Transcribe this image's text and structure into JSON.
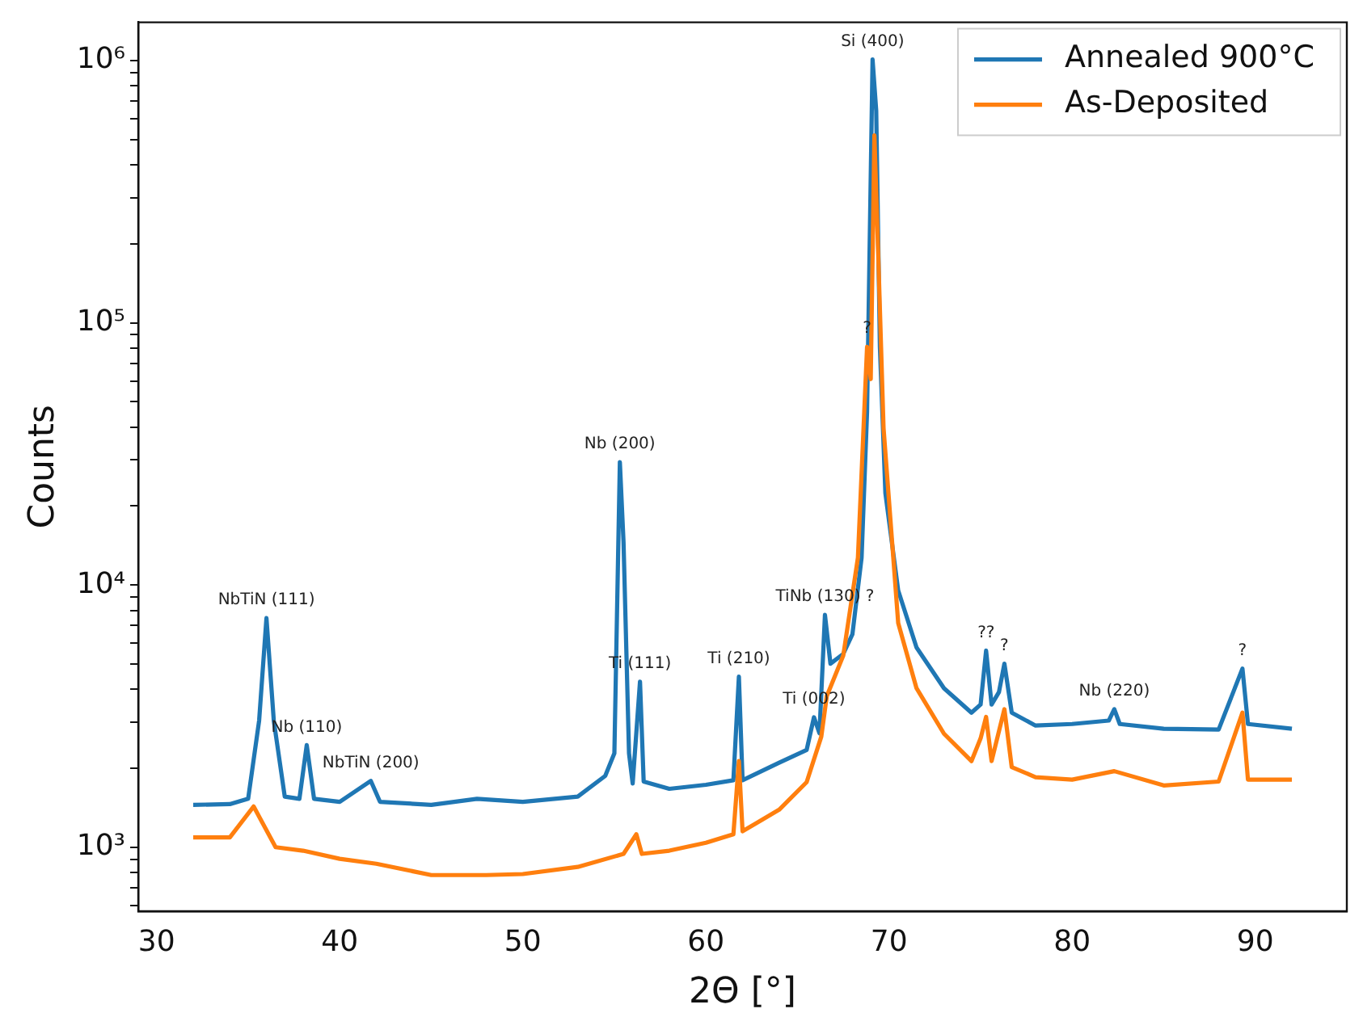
{
  "chart_data": {
    "type": "line",
    "xlabel": "2Θ [°]",
    "ylabel": "Counts",
    "log": "y",
    "legend": "top right",
    "marker": "none",
    "line_style": "solid",
    "grid": false,
    "xlim": [
      29,
      95
    ],
    "xticks": [
      30,
      40,
      50,
      60,
      70,
      80,
      90
    ],
    "ylim": [
      570,
      1400000
    ],
    "yticks": [
      {
        "value": 600,
        "label": null
      },
      {
        "value": 700,
        "label": null
      },
      {
        "value": 800,
        "label": null
      },
      {
        "value": 900,
        "label": null
      },
      {
        "value": 1000,
        "label": "10³"
      },
      {
        "value": 2000,
        "label": null
      },
      {
        "value": 3000,
        "label": null
      },
      {
        "value": 4000,
        "label": null
      },
      {
        "value": 5000,
        "label": null
      },
      {
        "value": 6000,
        "label": null
      },
      {
        "value": 7000,
        "label": null
      },
      {
        "value": 8000,
        "label": null
      },
      {
        "value": 9000,
        "label": null
      },
      {
        "value": 10000,
        "label": "10⁴"
      },
      {
        "value": 20000,
        "label": null
      },
      {
        "value": 30000,
        "label": null
      },
      {
        "value": 40000,
        "label": null
      },
      {
        "value": 50000,
        "label": null
      },
      {
        "value": 60000,
        "label": null
      },
      {
        "value": 70000,
        "label": null
      },
      {
        "value": 80000,
        "label": null
      },
      {
        "value": 90000,
        "label": null
      },
      {
        "value": 100000,
        "label": "10⁵"
      },
      {
        "value": 200000,
        "label": null
      },
      {
        "value": 300000,
        "label": null
      },
      {
        "value": 400000,
        "label": null
      },
      {
        "value": 500000,
        "label": null
      },
      {
        "value": 600000,
        "label": null
      },
      {
        "value": 700000,
        "label": null
      },
      {
        "value": 800000,
        "label": null
      },
      {
        "value": 900000,
        "label": null
      },
      {
        "value": 1000000,
        "label": "10⁶"
      }
    ],
    "series": [
      {
        "name": "Annealed 900°C",
        "color": "#1f77b4",
        "x": [
          32,
          34,
          35,
          35.6,
          36,
          36.4,
          37,
          37.8,
          38.2,
          38.6,
          40,
          41.7,
          42.2,
          45,
          47.5,
          50,
          53,
          54.5,
          55,
          55.3,
          55.5,
          55.8,
          56,
          56.4,
          56.6,
          58,
          60,
          61.5,
          61.8,
          62,
          64,
          65.5,
          65.9,
          66.2,
          66.5,
          66.8,
          67.5,
          68,
          68.5,
          68.8,
          69.1,
          69.3,
          69.5,
          69.8,
          70.5,
          71.5,
          73,
          74.5,
          75,
          75.3,
          75.6,
          76,
          76.3,
          76.7,
          78,
          80,
          82,
          82.3,
          82.6,
          85,
          88,
          89.3,
          89.6,
          92
        ],
        "values": [
          1450,
          1460,
          1530,
          3040,
          7480,
          3040,
          1560,
          1530,
          2450,
          1530,
          1490,
          1790,
          1490,
          1450,
          1530,
          1490,
          1560,
          1870,
          2280,
          29400,
          14600,
          2280,
          1750,
          4280,
          1780,
          1670,
          1730,
          1800,
          4470,
          1800,
          2100,
          2350,
          3130,
          2720,
          7690,
          5010,
          5460,
          6490,
          12700,
          45800,
          1010000,
          643000,
          81000,
          22400,
          9530,
          5780,
          4040,
          3260,
          3500,
          5620,
          3500,
          3900,
          5010,
          3260,
          2910,
          2950,
          3040,
          3360,
          2950,
          2830,
          2810,
          4800,
          2950,
          2830
        ]
      },
      {
        "name": "As-Deposited",
        "color": "#ff7f0e",
        "x": [
          32,
          34,
          35.3,
          36.5,
          38,
          40,
          42,
          45,
          48,
          50,
          53,
          55.5,
          56.2,
          56.5,
          58,
          60,
          61.5,
          61.8,
          62,
          64,
          65.5,
          66.3,
          66.6,
          67.5,
          68.3,
          68.8,
          69,
          69.2,
          69.4,
          69.7,
          70.5,
          71.5,
          73,
          74.5,
          75,
          75.3,
          75.6,
          76.3,
          76.7,
          78,
          80,
          82.3,
          85,
          88,
          89.3,
          89.6,
          92
        ],
        "values": [
          1090,
          1090,
          1430,
          1000,
          970,
          903,
          865,
          783,
          783,
          790,
          841,
          943,
          1120,
          943,
          970,
          1040,
          1120,
          2130,
          1150,
          1390,
          1770,
          2640,
          3770,
          5380,
          12700,
          81000,
          61000,
          519000,
          191000,
          39700,
          7160,
          4040,
          2710,
          2130,
          2600,
          3140,
          2130,
          3360,
          2020,
          1850,
          1810,
          1950,
          1720,
          1780,
          3260,
          1810,
          1810
        ]
      }
    ],
    "annotations": [
      {
        "text": "Si (400)",
        "x": 69.1,
        "y": 1010000
      },
      {
        "text": "?",
        "x": 68.8,
        "y": 81000
      },
      {
        "text": "Nb (200)",
        "x": 55.3,
        "y": 29400
      },
      {
        "text": "NbTiN (111)",
        "x": 36,
        "y": 7480
      },
      {
        "text": "Nb (110)",
        "x": 38.2,
        "y": 2450
      },
      {
        "text": "NbTiN (200)",
        "x": 41.7,
        "y": 1790
      },
      {
        "text": "Ti (111)",
        "x": 56.4,
        "y": 4280
      },
      {
        "text": "Ti (210)",
        "x": 61.8,
        "y": 4470
      },
      {
        "text": "Ti (002)",
        "x": 65.9,
        "y": 3130
      },
      {
        "text": "TiNb (130) ?",
        "x": 66.5,
        "y": 7690
      },
      {
        "text": "??",
        "x": 75.3,
        "y": 5620
      },
      {
        "text": "?",
        "x": 76.3,
        "y": 5010
      },
      {
        "text": "Nb (220)",
        "x": 82.3,
        "y": 3360
      },
      {
        "text": "?",
        "x": 89.3,
        "y": 4800
      }
    ]
  }
}
